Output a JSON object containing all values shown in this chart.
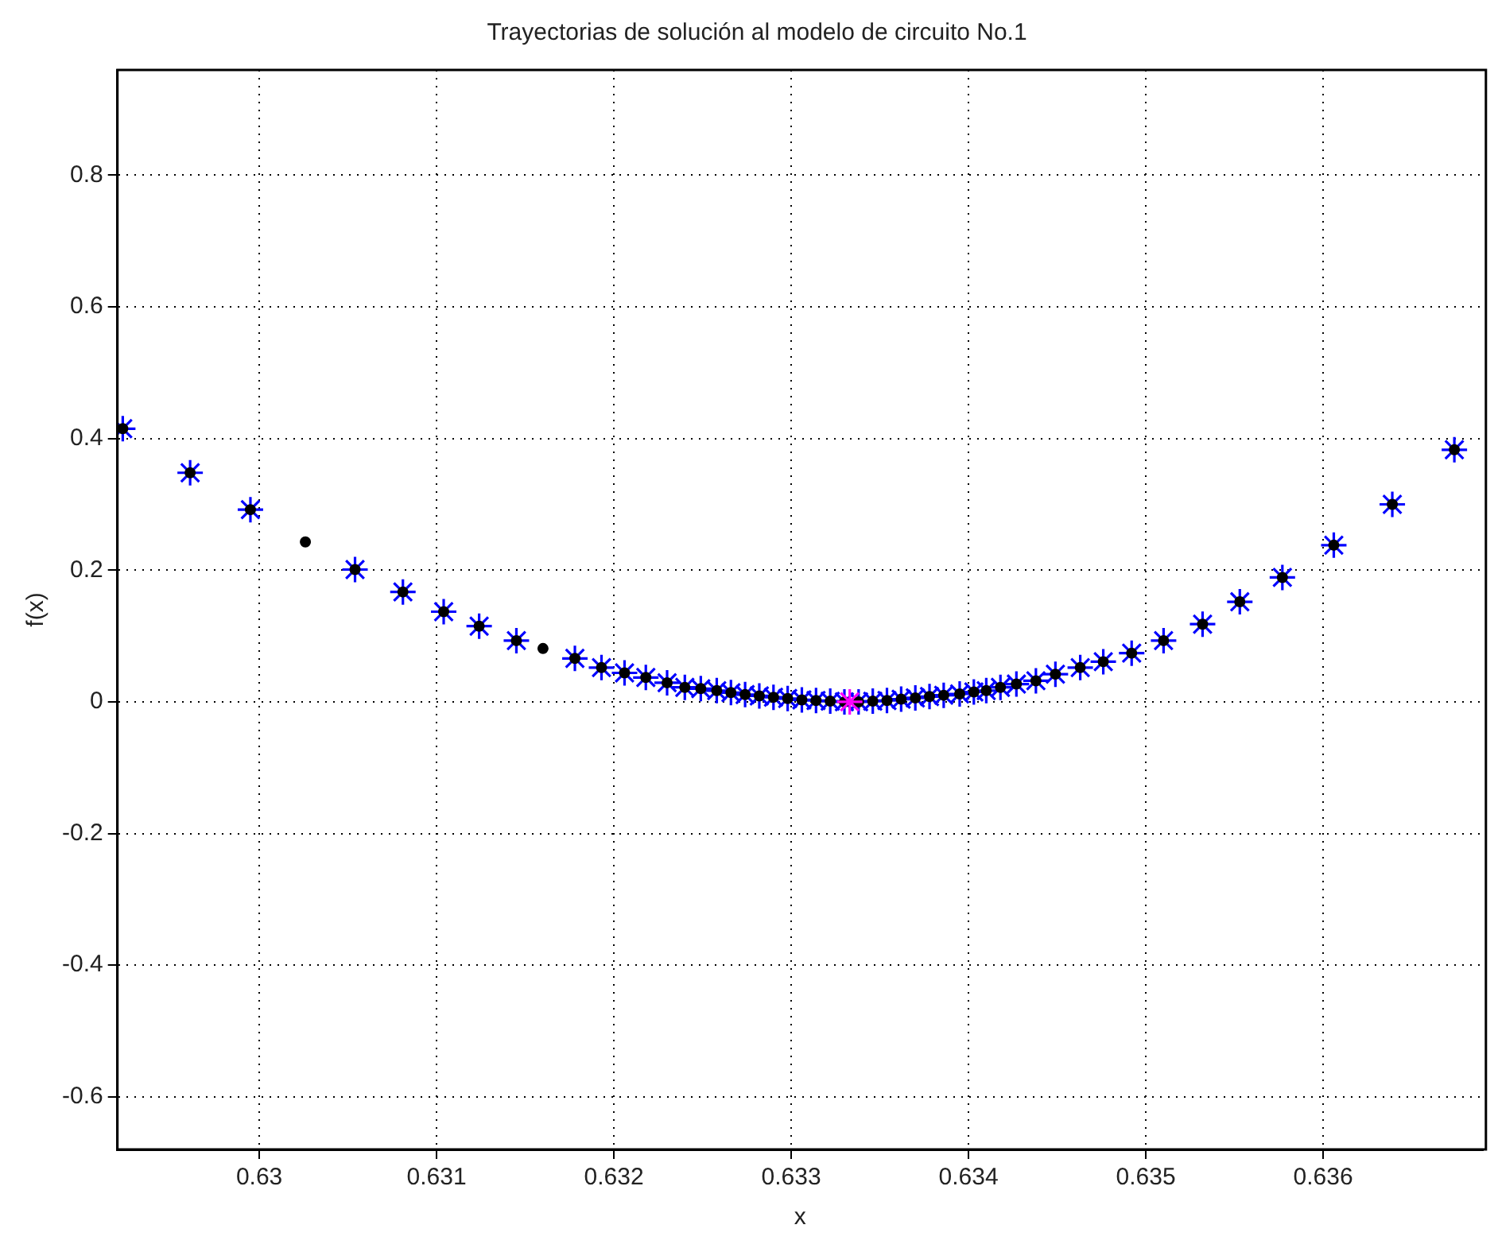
{
  "chart_data": {
    "type": "scatter",
    "title": "Trayectorias de solución al modelo de circuito No.1",
    "xlabel": "x",
    "ylabel": "f(x)",
    "xlim": [
      0.6292,
      0.6369
    ],
    "ylim": [
      -0.68,
      0.96
    ],
    "xticks": [
      0.63,
      0.631,
      0.632,
      0.633,
      0.634,
      0.635,
      0.636
    ],
    "yticks": [
      -0.6,
      -0.4,
      -0.2,
      0,
      0.2,
      0.4,
      0.6,
      0.8
    ],
    "grid": true,
    "legend": false,
    "series": [
      {
        "color": "#0000ff",
        "marker": "cross",
        "x": [
          0.62923,
          0.62961,
          0.62995,
          0.63054,
          0.63081,
          0.63104,
          0.63124,
          0.63145,
          0.63178,
          0.63193,
          0.63206,
          0.63218,
          0.6323,
          0.6324,
          0.63249,
          0.63258,
          0.63266,
          0.63274,
          0.63282,
          0.6329,
          0.63298,
          0.63306,
          0.63314,
          0.63322,
          0.6333,
          0.63338,
          0.63346,
          0.63354,
          0.63362,
          0.6337,
          0.63378,
          0.63386,
          0.63395,
          0.63403,
          0.6341,
          0.63418,
          0.63427,
          0.63438,
          0.63449,
          0.63463,
          0.63476,
          0.63492,
          0.6351,
          0.63532,
          0.63553,
          0.63577,
          0.63606,
          0.63639,
          0.63674
        ],
        "values": [
          0.415,
          0.348,
          0.292,
          0.201,
          0.167,
          0.137,
          0.115,
          0.093,
          0.066,
          0.052,
          0.044,
          0.037,
          0.029,
          0.022,
          0.02,
          0.017,
          0.014,
          0.011,
          0.009,
          0.007,
          0.005,
          0.003,
          0.002,
          0.001,
          0,
          0,
          0.001,
          0.002,
          0.004,
          0.006,
          0.008,
          0.01,
          0.012,
          0.015,
          0.017,
          0.022,
          0.027,
          0.032,
          0.042,
          0.052,
          0.061,
          0.074,
          0.093,
          0.118,
          0.152,
          0.189,
          0.238,
          0.3,
          0.383
        ]
      },
      {
        "color": "#000000",
        "marker": "circle",
        "x": [
          0.62923,
          0.62961,
          0.62995,
          0.63026,
          0.63054,
          0.63081,
          0.63104,
          0.63124,
          0.63145,
          0.6316,
          0.63178,
          0.63193,
          0.63206,
          0.63218,
          0.6323,
          0.6324,
          0.63249,
          0.63258,
          0.63266,
          0.63274,
          0.63282,
          0.6329,
          0.63298,
          0.63306,
          0.63314,
          0.63322,
          0.6333,
          0.63338,
          0.63346,
          0.63354,
          0.63362,
          0.6337,
          0.63378,
          0.63386,
          0.63395,
          0.63403,
          0.6341,
          0.63418,
          0.63427,
          0.63438,
          0.63449,
          0.63463,
          0.63476,
          0.63492,
          0.6351,
          0.63532,
          0.63553,
          0.63577,
          0.63606,
          0.63639,
          0.63674
        ],
        "values": [
          0.415,
          0.348,
          0.292,
          0.243,
          0.201,
          0.167,
          0.137,
          0.115,
          0.093,
          0.081,
          0.066,
          0.052,
          0.044,
          0.037,
          0.029,
          0.022,
          0.02,
          0.017,
          0.014,
          0.011,
          0.009,
          0.007,
          0.005,
          0.003,
          0.002,
          0.001,
          0,
          0,
          0.001,
          0.002,
          0.004,
          0.006,
          0.008,
          0.01,
          0.012,
          0.015,
          0.017,
          0.022,
          0.027,
          0.032,
          0.042,
          0.052,
          0.061,
          0.074,
          0.093,
          0.118,
          0.152,
          0.189,
          0.238,
          0.3,
          0.383
        ]
      },
      {
        "color": "#ff00ff",
        "marker": "cross",
        "x": [
          0.63333
        ],
        "values": [
          0
        ]
      }
    ]
  }
}
